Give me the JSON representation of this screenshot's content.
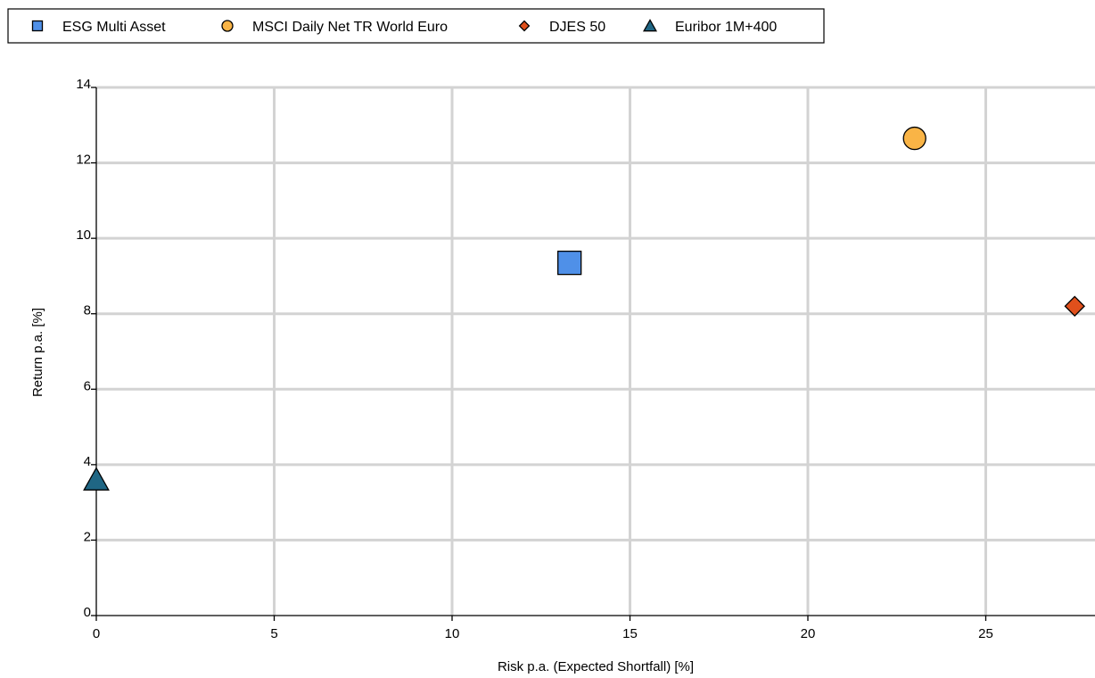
{
  "chart_data": {
    "type": "scatter",
    "title": "",
    "xlabel": "Risk p.a. (Expected Shortfall) [%]",
    "ylabel": "Return p.a. [%]",
    "xlim": [
      0,
      28
    ],
    "ylim": [
      0,
      14
    ],
    "xticks": [
      0,
      5,
      10,
      15,
      20,
      25
    ],
    "yticks": [
      0,
      2,
      4,
      6,
      8,
      10,
      12,
      14
    ],
    "grid": true,
    "legend_position": "top-left",
    "series": [
      {
        "name": "ESG Multi Asset",
        "marker": "square",
        "color": "#4f90e8",
        "x": 13.3,
        "y": 9.35
      },
      {
        "name": "MSCI Daily Net TR World Euro",
        "marker": "circle",
        "color": "#f9b446",
        "x": 23.0,
        "y": 12.65
      },
      {
        "name": "DJES 50",
        "marker": "diamond",
        "color": "#e0501c",
        "x": 27.5,
        "y": 8.2
      },
      {
        "name": "Euribor 1M+400",
        "marker": "triangle",
        "color": "#1f6684",
        "x": 0.0,
        "y": 3.6
      }
    ]
  }
}
